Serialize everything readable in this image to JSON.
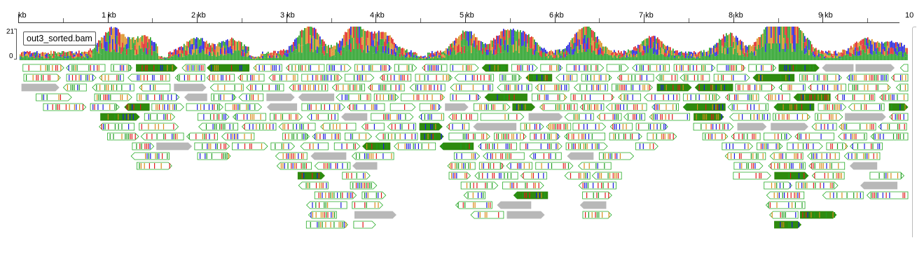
{
  "ruler": {
    "unit_label": "kb",
    "ticks": [
      "kb",
      "1 kb",
      "2 kb",
      "3 kb",
      "4 kb",
      "5 kb",
      "6 kb",
      "7 kb",
      "8 kb",
      "9 kb",
      "10"
    ]
  },
  "track": {
    "name": "out3_sorted.bam",
    "coverage_max": "21",
    "coverage_min": "0"
  },
  "colors": {
    "base_A": "#1f9d1f",
    "base_C": "#1a1adc",
    "base_G": "#d98b1a",
    "base_T": "#e01a1a",
    "read_outline": "#22aa22",
    "read_gray": "#b8b8b8",
    "read_darkgreen": "#2e8a0e"
  },
  "icons": {
    "scroll": "vertical-scrollbar"
  }
}
